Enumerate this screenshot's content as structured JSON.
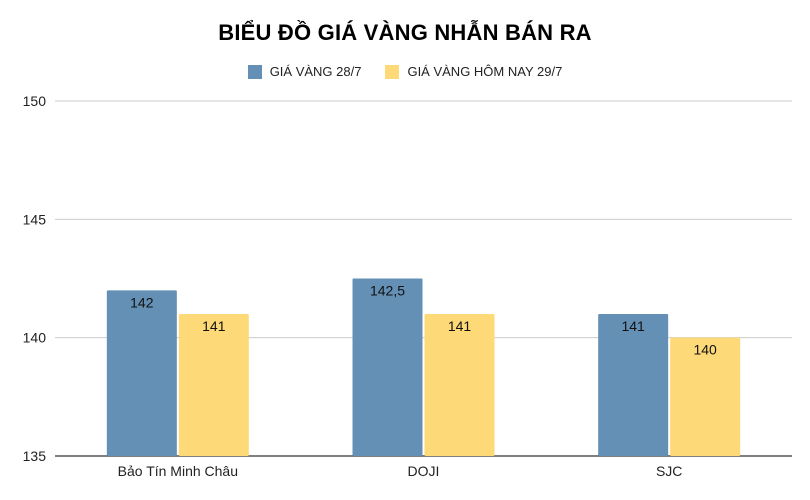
{
  "chart_data": {
    "type": "bar",
    "title": "BIỂU ĐỒ GIÁ VÀNG NHẪN BÁN RA",
    "xlabel": "",
    "ylabel": "",
    "categories": [
      "Bảo Tín Minh Châu",
      "DOJI",
      "SJC"
    ],
    "series": [
      {
        "name": "GIÁ VÀNG 28/7",
        "color": "#6490b5",
        "values": [
          142,
          142.5,
          141
        ],
        "labels": [
          "142",
          "142,5",
          "141"
        ]
      },
      {
        "name": "GIÁ VÀNG HÔM NAY 29/7",
        "color": "#fdd978",
        "values": [
          141,
          141,
          140
        ],
        "labels": [
          "141",
          "141",
          "140"
        ]
      }
    ],
    "ylim": [
      135,
      150
    ],
    "yticks": [
      135,
      140,
      145,
      150
    ],
    "grid": true,
    "legend_position": "top-center"
  }
}
